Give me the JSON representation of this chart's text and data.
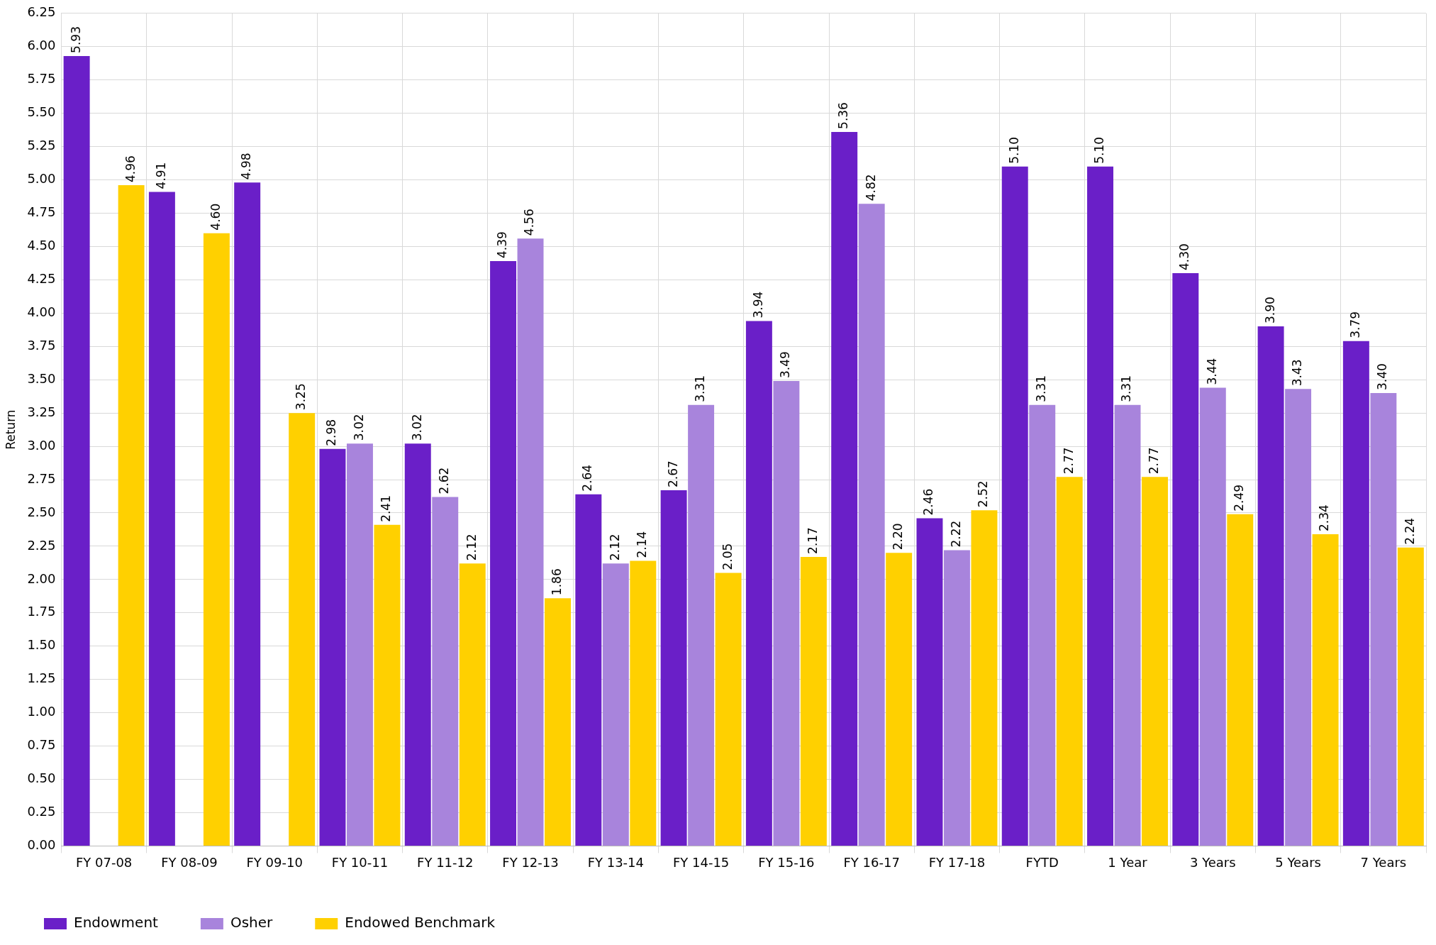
{
  "chart_data": {
    "type": "bar",
    "ylabel": "Return",
    "categories": [
      "FY 07-08",
      "FY 08-09",
      "FY 09-10",
      "FY 10-11",
      "FY 11-12",
      "FY 12-13",
      "FY 13-14",
      "FY 14-15",
      "FY 15-16",
      "FY 16-17",
      "FY 17-18",
      "FYTD",
      "1 Year",
      "3 Years",
      "5 Years",
      "7 Years"
    ],
    "series": [
      {
        "name": "Endowment",
        "color": "#6a1fc8",
        "values": [
          5.93,
          4.91,
          4.98,
          2.98,
          3.02,
          4.39,
          2.64,
          2.67,
          3.94,
          5.36,
          2.46,
          5.1,
          5.1,
          4.3,
          3.9,
          3.79
        ],
        "value_labels": [
          "5.93",
          "4.91",
          "4.98",
          "2.98",
          "3.02",
          "4.39",
          "2.64",
          "2.67",
          "3.94",
          "5.36",
          "2.46",
          "5.10",
          "5.10",
          "4.30",
          "3.90",
          "3.79"
        ]
      },
      {
        "name": "Osher",
        "color": "#a884dc",
        "values": [
          null,
          null,
          null,
          3.02,
          2.62,
          4.56,
          2.12,
          3.31,
          3.49,
          4.82,
          2.22,
          3.31,
          3.31,
          3.44,
          3.43,
          3.4
        ],
        "value_labels": [
          null,
          null,
          null,
          "3.02",
          "2.62",
          "4.56",
          "2.12",
          "3.31",
          "3.49",
          "4.82",
          "2.22",
          "3.31",
          "3.31",
          "3.44",
          "3.43",
          "3.40"
        ]
      },
      {
        "name": "Endowed Benchmark",
        "color": "#ffd000",
        "values": [
          4.96,
          4.6,
          3.25,
          2.41,
          2.12,
          1.86,
          2.14,
          2.05,
          2.17,
          2.2,
          2.52,
          2.77,
          2.77,
          2.49,
          2.34,
          2.24
        ],
        "value_labels": [
          "4.96",
          "4.60",
          "3.25",
          "2.41",
          "2.12",
          "1.86",
          "2.14",
          "2.05",
          "2.17",
          "2.20",
          "2.52",
          "2.77",
          "2.77",
          "2.49",
          "2.34",
          "2.24"
        ]
      }
    ],
    "ylim": [
      0,
      6.25
    ],
    "yticks": [
      {
        "value": 0,
        "label": "0.00"
      },
      {
        "value": 0.25,
        "label": "0.25"
      },
      {
        "value": 0.5,
        "label": "0.50"
      },
      {
        "value": 0.75,
        "label": "0.75"
      },
      {
        "value": 1,
        "label": "1.00"
      },
      {
        "value": 1.25,
        "label": "1.25"
      },
      {
        "value": 1.5,
        "label": "1.50"
      },
      {
        "value": 1.75,
        "label": "1.75"
      },
      {
        "value": 2,
        "label": "2.00"
      },
      {
        "value": 2.25,
        "label": "2.25"
      },
      {
        "value": 2.5,
        "label": "2.50"
      },
      {
        "value": 2.75,
        "label": "2.75"
      },
      {
        "value": 3,
        "label": "3.00"
      },
      {
        "value": 3.25,
        "label": "3.25"
      },
      {
        "value": 3.5,
        "label": "3.50"
      },
      {
        "value": 3.75,
        "label": "3.75"
      },
      {
        "value": 4,
        "label": "4.00"
      },
      {
        "value": 4.25,
        "label": "4.25"
      },
      {
        "value": 4.5,
        "label": "4.50"
      },
      {
        "value": 4.75,
        "label": "4.75"
      },
      {
        "value": 5,
        "label": "5.00"
      },
      {
        "value": 5.25,
        "label": "5.25"
      },
      {
        "value": 5.5,
        "label": "5.50"
      },
      {
        "value": 5.75,
        "label": "5.75"
      },
      {
        "value": 6,
        "label": "6.00"
      },
      {
        "value": 6.25,
        "label": "6.25"
      }
    ],
    "grid": true,
    "legend": "bottom left"
  }
}
